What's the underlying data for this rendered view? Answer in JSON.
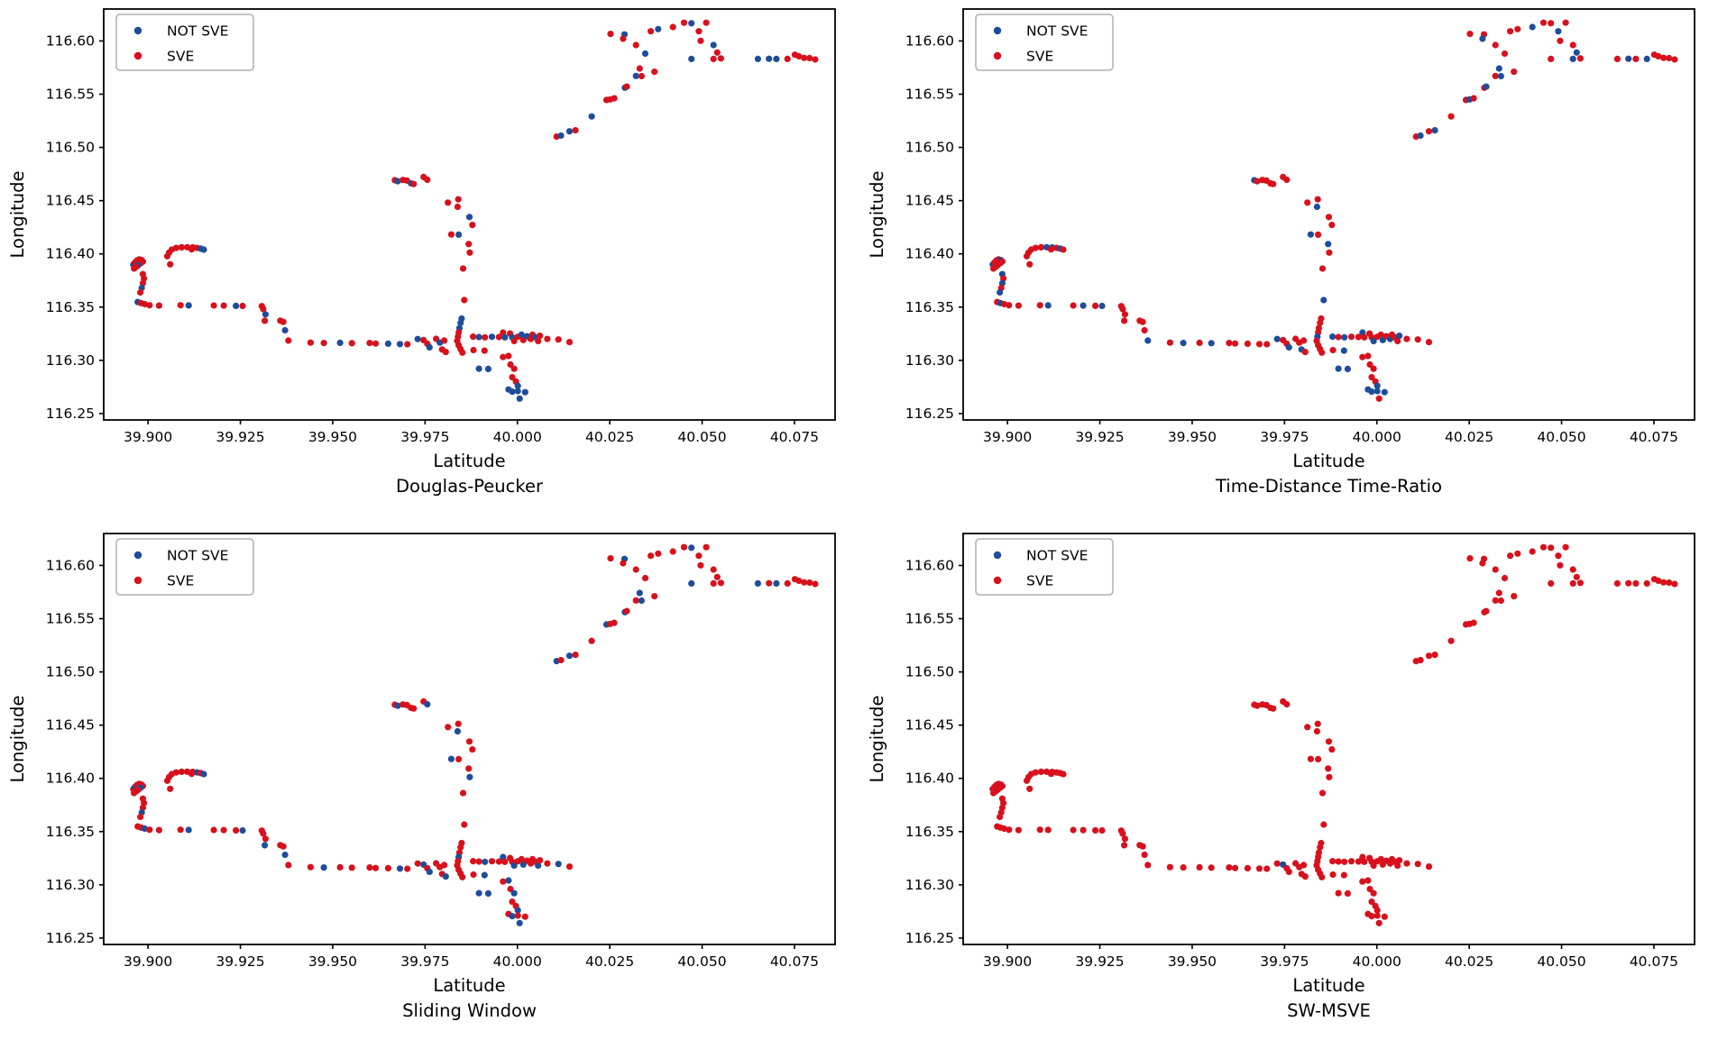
{
  "figure": {
    "background": "#ffffff"
  },
  "colors": {
    "sve": "#d8111c",
    "not_sve": "#1e4d9b",
    "axis": "#000000",
    "legend_border": "#b0b0b0"
  },
  "legend": {
    "items": [
      {
        "label": "NOT SVE",
        "color": "#1e4d9b"
      },
      {
        "label": "SVE",
        "color": "#d8111c"
      }
    ]
  },
  "chart_data": {
    "type": "scatter",
    "xlabel": "Latitude",
    "ylabel": "Longitude",
    "xlim": [
      39.888,
      40.086
    ],
    "ylim": [
      116.244,
      116.63
    ],
    "xticks": [
      39.9,
      39.925,
      39.95,
      39.975,
      40.0,
      40.025,
      40.05,
      40.075
    ],
    "xtick_labels": [
      "39.900",
      "39.925",
      "39.950",
      "39.975",
      "40.000",
      "40.025",
      "40.050",
      "40.075"
    ],
    "yticks": [
      116.25,
      116.3,
      116.35,
      116.4,
      116.45,
      116.5,
      116.55,
      116.6
    ],
    "ytick_labels": [
      "116.25",
      "116.30",
      "116.35",
      "116.40",
      "116.45",
      "116.50",
      "116.55",
      "116.60"
    ],
    "legend_labels": [
      "NOT SVE",
      "SVE"
    ],
    "grid": false,
    "legend_position": "upper-left",
    "base_trajectory": [
      [
        39.896,
        116.39
      ],
      [
        39.8965,
        116.392
      ],
      [
        39.897,
        116.3938
      ],
      [
        39.8976,
        116.3948
      ],
      [
        39.8982,
        116.3942
      ],
      [
        39.8986,
        116.3928
      ],
      [
        39.898,
        116.3912
      ],
      [
        39.8973,
        116.3892
      ],
      [
        39.8968,
        116.3878
      ],
      [
        39.8962,
        116.3862
      ],
      [
        39.8986,
        116.381
      ],
      [
        39.8989,
        116.3768
      ],
      [
        39.8986,
        116.3724
      ],
      [
        39.8983,
        116.368
      ],
      [
        39.8979,
        116.3638
      ],
      [
        39.8972,
        116.3548
      ],
      [
        39.8981,
        116.3538
      ],
      [
        39.8991,
        116.3528
      ],
      [
        39.9004,
        116.3518
      ],
      [
        39.9052,
        116.3978
      ],
      [
        39.9057,
        116.4012
      ],
      [
        39.9064,
        116.404
      ],
      [
        39.9076,
        116.4056
      ],
      [
        39.9091,
        116.4062
      ],
      [
        39.9106,
        116.4063
      ],
      [
        39.9121,
        116.4061
      ],
      [
        39.9133,
        116.4056
      ],
      [
        39.9143,
        116.4049
      ],
      [
        39.9151,
        116.404
      ],
      [
        39.9118,
        116.4042
      ],
      [
        39.906,
        116.3902
      ],
      [
        39.903,
        116.3514
      ],
      [
        39.9088,
        116.3518
      ],
      [
        39.911,
        116.3516
      ],
      [
        39.9178,
        116.3515
      ],
      [
        39.9205,
        116.3514
      ],
      [
        39.9238,
        116.3512
      ],
      [
        39.9256,
        116.3511
      ],
      [
        39.9308,
        116.3509
      ],
      [
        39.9312,
        116.3482
      ],
      [
        39.9318,
        116.3432
      ],
      [
        39.9316,
        116.3372
      ],
      [
        39.9358,
        116.3373
      ],
      [
        39.9366,
        116.3361
      ],
      [
        39.9371,
        116.3282
      ],
      [
        39.938,
        116.3186
      ],
      [
        39.944,
        116.3166
      ],
      [
        39.9476,
        116.3163
      ],
      [
        39.952,
        116.3165
      ],
      [
        39.9552,
        116.3161
      ],
      [
        39.96,
        116.3163
      ],
      [
        39.9616,
        116.3158
      ],
      [
        39.965,
        116.3156
      ],
      [
        39.9682,
        116.3153
      ],
      [
        39.9702,
        116.3151
      ],
      [
        39.973,
        116.32
      ],
      [
        39.9746,
        116.319
      ],
      [
        39.9756,
        116.3156
      ],
      [
        39.9762,
        116.3122
      ],
      [
        39.978,
        116.3202
      ],
      [
        39.979,
        116.3166
      ],
      [
        39.9796,
        116.3102
      ],
      [
        39.9802,
        116.3186
      ],
      [
        39.9806,
        116.3078
      ],
      [
        39.984,
        116.4512
      ],
      [
        39.9812,
        116.4482
      ],
      [
        39.9838,
        116.4442
      ],
      [
        39.987,
        116.4346
      ],
      [
        39.9878,
        116.4272
      ],
      [
        39.9821,
        116.4182
      ],
      [
        39.9841,
        116.418
      ],
      [
        39.9868,
        116.4092
      ],
      [
        39.9871,
        116.4012
      ],
      [
        39.9853,
        116.3862
      ],
      [
        39.9856,
        116.3566
      ],
      [
        39.9849,
        116.3392
      ],
      [
        39.9846,
        116.3352
      ],
      [
        39.9843,
        116.3302
      ],
      [
        39.9841,
        116.3262
      ],
      [
        39.9839,
        116.3222
      ],
      [
        39.9837,
        116.3182
      ],
      [
        39.9841,
        116.3142
      ],
      [
        39.9846,
        116.3106
      ],
      [
        39.9851,
        116.3072
      ],
      [
        39.9668,
        116.4692
      ],
      [
        39.9676,
        116.4682
      ],
      [
        39.969,
        116.4694
      ],
      [
        39.9701,
        116.4688
      ],
      [
        39.9712,
        116.4662
      ],
      [
        39.9719,
        116.4656
      ],
      [
        39.9746,
        116.4722
      ],
      [
        39.9756,
        116.4696
      ],
      [
        39.988,
        116.3222
      ],
      [
        39.9896,
        116.3219
      ],
      [
        39.9912,
        116.3216
      ],
      [
        39.9931,
        116.3221
      ],
      [
        39.995,
        116.3219
      ],
      [
        39.9961,
        116.3261
      ],
      [
        39.9966,
        116.3216
      ],
      [
        39.998,
        116.3252
      ],
      [
        39.9986,
        116.3216
      ],
      [
        39.9991,
        116.3181
      ],
      [
        40.0001,
        116.3221
      ],
      [
        40.0011,
        116.3241
      ],
      [
        40.0016,
        116.3191
      ],
      [
        40.0026,
        116.3226
      ],
      [
        40.0036,
        116.3201
      ],
      [
        40.0041,
        116.3241
      ],
      [
        40.0049,
        116.3216
      ],
      [
        40.0056,
        116.3181
      ],
      [
        40.0061,
        116.3231
      ],
      [
        40.0081,
        116.3201
      ],
      [
        40.0111,
        116.3196
      ],
      [
        40.0141,
        116.3171
      ],
      [
        39.9881,
        116.3096
      ],
      [
        39.9911,
        116.3091
      ],
      [
        39.9961,
        116.3031
      ],
      [
        39.9976,
        116.3041
      ],
      [
        39.9981,
        116.2961
      ],
      [
        39.9991,
        116.2921
      ],
      [
        39.9896,
        116.2922
      ],
      [
        39.9921,
        116.2919
      ],
      [
        39.9986,
        116.2841
      ],
      [
        39.9996,
        116.2801
      ],
      [
        40.0001,
        116.2761
      ],
      [
        39.9976,
        116.2726
      ],
      [
        39.9986,
        116.2706
      ],
      [
        40.0001,
        116.2711
      ],
      [
        40.0021,
        116.2701
      ],
      [
        40.0006,
        116.2641
      ],
      [
        40.0106,
        116.5101
      ],
      [
        40.0118,
        116.5111
      ],
      [
        40.0141,
        116.5151
      ],
      [
        40.0157,
        116.5161
      ],
      [
        40.0201,
        116.5291
      ],
      [
        40.0241,
        116.5446
      ],
      [
        40.0251,
        116.5451
      ],
      [
        40.0262,
        116.5461
      ],
      [
        40.0291,
        116.5561
      ],
      [
        40.0296,
        116.5571
      ],
      [
        40.0252,
        116.6066
      ],
      [
        40.029,
        116.6061
      ],
      [
        40.0286,
        116.6021
      ],
      [
        40.0321,
        116.5961
      ],
      [
        40.0346,
        116.5881
      ],
      [
        40.0331,
        116.5741
      ],
      [
        40.0371,
        116.5711
      ],
      [
        40.0321,
        116.5671
      ],
      [
        40.0336,
        116.5669
      ],
      [
        40.0361,
        116.6091
      ],
      [
        40.0381,
        116.6111
      ],
      [
        40.0421,
        116.6131
      ],
      [
        40.0451,
        116.6171
      ],
      [
        40.0471,
        116.6166
      ],
      [
        40.0491,
        116.6091
      ],
      [
        40.0511,
        116.6171
      ],
      [
        40.0531,
        116.5961
      ],
      [
        40.0541,
        116.5891
      ],
      [
        40.0471,
        116.5831
      ],
      [
        40.0531,
        116.5831
      ],
      [
        40.0551,
        116.5836
      ],
      [
        40.0496,
        116.6001
      ],
      [
        40.0651,
        116.5831
      ],
      [
        40.0681,
        116.5833
      ],
      [
        40.0701,
        116.5831
      ],
      [
        40.0731,
        116.5831
      ],
      [
        40.0751,
        116.5871
      ],
      [
        40.0762,
        116.5856
      ],
      [
        40.0776,
        116.5841
      ],
      [
        40.0791,
        116.5839
      ],
      [
        40.0806,
        116.5826
      ]
    ],
    "subplots": [
      {
        "title": "Douglas-Peucker",
        "not_sve_indices": [
          0,
          7,
          13,
          15,
          27,
          28,
          33,
          36,
          40,
          44,
          48,
          52,
          53,
          55,
          58,
          60,
          67,
          70,
          75,
          76,
          77,
          85,
          88,
          93,
          95,
          98,
          100,
          103,
          105,
          108,
          120,
          121,
          124,
          125,
          126,
          127,
          128,
          129,
          131,
          132,
          134,
          138,
          141,
          144,
          147,
          150,
          153,
          156,
          158,
          162,
          163,
          164
        ]
      },
      {
        "title": "Time-Distance Time-Ratio",
        "not_sve_indices": [
          0,
          4,
          10,
          12,
          14,
          16,
          24,
          25,
          27,
          33,
          35,
          37,
          45,
          47,
          49,
          55,
          58,
          61,
          66,
          69,
          71,
          74,
          79,
          84,
          92,
          94,
          97,
          101,
          104,
          106,
          110,
          115,
          120,
          121,
          124,
          125,
          126,
          127,
          128,
          131,
          133,
          136,
          139,
          142,
          145,
          148,
          151,
          154,
          157,
          159,
          163,
          165
        ]
      },
      {
        "title": "Sliding Window",
        "not_sve_indices": [
          1,
          6,
          13,
          17,
          26,
          28,
          33,
          37,
          41,
          44,
          47,
          53,
          56,
          58,
          63,
          66,
          69,
          72,
          78,
          85,
          91,
          94,
          97,
          101,
          104,
          109,
          112,
          115,
          117,
          119,
          120,
          121,
          124,
          126,
          129,
          130,
          132,
          135,
          138,
          141,
          145,
          148,
          153,
          158,
          162,
          164
        ]
      },
      {
        "title": "SW-MSVE",
        "not_sve_indices": [
          56
        ]
      }
    ]
  }
}
